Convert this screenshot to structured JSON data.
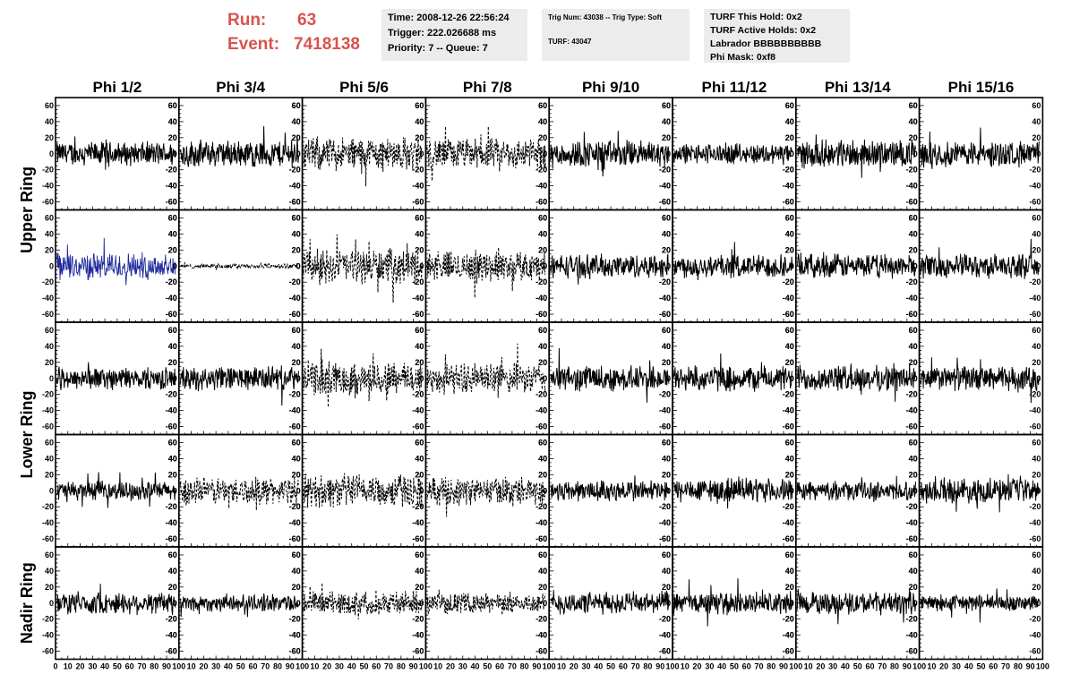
{
  "header": {
    "run_label": "Run:",
    "run_value": "63",
    "event_label": "Event:",
    "event_value": "7418138",
    "timing": {
      "time": "Time: 2008-12-26 22:56:24",
      "trigger": "Trigger: 222.026688 ms",
      "priority": "Priority: 7 -- Queue: 7"
    },
    "trig": {
      "trig_num": "Trig Num: 43038 -- Trig Type: Soft",
      "turf": "TURF: 43047"
    },
    "turf": {
      "this_hold": "TURF This Hold: 0x2",
      "active_holds": "TURF Active Holds: 0x2",
      "labrador": "Labrador BBBBBBBBBB",
      "phi_mask": "Phi Mask: 0xf8"
    },
    "colors": {
      "title_red": "#d9534f",
      "box_bg": "#ececec"
    }
  },
  "chart_data": {
    "type": "line",
    "columns": [
      "Phi 1/2",
      "Phi 3/4",
      "Phi 5/6",
      "Phi 7/8",
      "Phi 9/10",
      "Phi 11/12",
      "Phi 13/14",
      "Phi 15/16"
    ],
    "row_groups": [
      {
        "label": "Upper Ring",
        "rows": [
          0,
          1
        ]
      },
      {
        "label": "Lower Ring",
        "rows": [
          2,
          3
        ]
      },
      {
        "label": "Nadir Ring",
        "rows": [
          4
        ]
      }
    ],
    "xlim": [
      0,
      100
    ],
    "ylim": [
      -70,
      70
    ],
    "x_ticks": [
      0,
      10,
      20,
      30,
      40,
      50,
      60,
      70,
      80,
      90,
      100
    ],
    "x_tick_labels": [
      "0",
      "10",
      "20",
      "30",
      "40",
      "50",
      "60",
      "70",
      "80",
      "90",
      "100"
    ],
    "y_ticks": [
      -60,
      -40,
      -20,
      0,
      20,
      40,
      60
    ],
    "y_tick_labels": [
      "-60",
      "-40",
      "-20",
      "0",
      "20",
      "40",
      "60"
    ],
    "styles": {
      "solid": "#000000",
      "dashed": "#000000",
      "highlight": "#1f2a9e"
    },
    "panels": [
      [
        "solid",
        "solid",
        "dashed",
        "dashed",
        "solid",
        "solid",
        "solid",
        "solid"
      ],
      [
        "highlight",
        "dashed",
        "dashed",
        "dashed",
        "solid",
        "solid",
        "solid",
        "solid"
      ],
      [
        "solid",
        "solid",
        "dashed",
        "dashed",
        "solid",
        "solid",
        "solid",
        "solid"
      ],
      [
        "solid",
        "dashed",
        "dashed",
        "dashed",
        "solid",
        "solid",
        "solid",
        "solid"
      ],
      [
        "solid",
        "solid",
        "dashed",
        "dashed",
        "solid",
        "solid",
        "solid",
        "solid"
      ]
    ],
    "amplitudes": [
      [
        14,
        16,
        20,
        18,
        16,
        12,
        16,
        15
      ],
      [
        16,
        3,
        20,
        18,
        14,
        14,
        14,
        14
      ],
      [
        13,
        14,
        20,
        18,
        15,
        15,
        15,
        14
      ],
      [
        11,
        16,
        20,
        16,
        13,
        14,
        11,
        14
      ],
      [
        13,
        10,
        14,
        12,
        13,
        13,
        13,
        10
      ]
    ],
    "n_samples": 256
  }
}
